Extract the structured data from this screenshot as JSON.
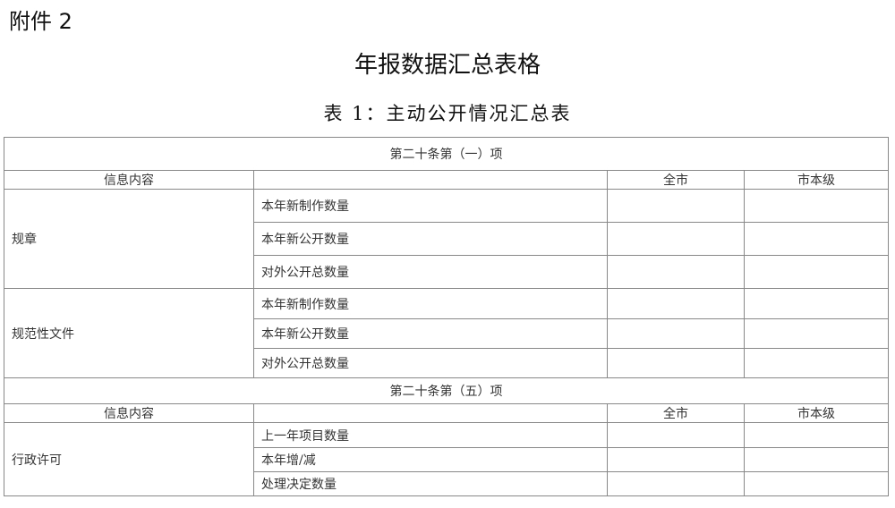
{
  "attachment_label": "附件 2",
  "title": "年报数据汇总表格",
  "subtitle": "表 1：主动公开情况汇总表",
  "table": {
    "section1": "第二十条第（一）项",
    "section2": "第二十条第（五）项",
    "header": {
      "info": "信息内容",
      "all_city": "全市",
      "city_level": "市本级"
    },
    "groups": [
      {
        "name": "规章",
        "items": [
          "本年新制作数量",
          "本年新公开数量",
          "对外公开总数量"
        ]
      },
      {
        "name": "规范性文件",
        "items": [
          "本年新制作数量",
          "本年新公开数量",
          "对外公开总数量"
        ]
      },
      {
        "name": "行政许可",
        "items": [
          "上一年项目数量",
          "本年增/减",
          "处理决定数量"
        ]
      }
    ]
  }
}
